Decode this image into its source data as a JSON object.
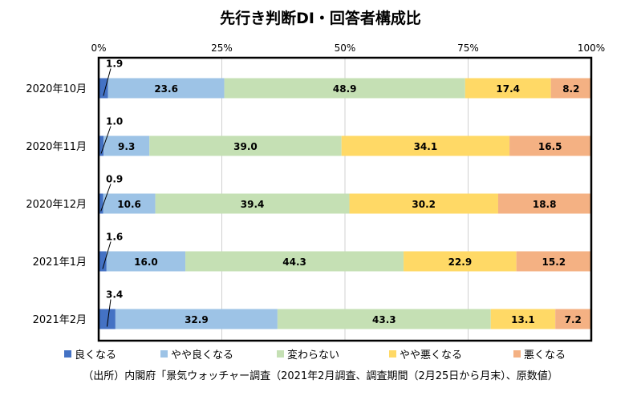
{
  "chart_data": {
    "type": "bar",
    "orientation": "horizontal",
    "stacked": true,
    "title": "先行き判断DI・回答者構成比",
    "categories": [
      "2020年10月",
      "2020年11月",
      "2020年12月",
      "2021年1月",
      "2021年2月"
    ],
    "xlim": [
      0,
      100
    ],
    "x_ticks": [
      "0%",
      "25%",
      "50%",
      "75%",
      "100%"
    ],
    "grid": true,
    "legend_position": "bottom",
    "series": [
      {
        "name": "良くなる",
        "color": "#4472c4",
        "values": [
          1.9,
          1.0,
          0.9,
          1.6,
          3.4
        ]
      },
      {
        "name": "やや良くなる",
        "color": "#9dc3e6",
        "values": [
          23.6,
          9.3,
          10.6,
          16.0,
          32.9
        ]
      },
      {
        "name": "変わらない",
        "color": "#c5e0b4",
        "values": [
          48.9,
          39.0,
          39.4,
          44.3,
          43.3
        ]
      },
      {
        "name": "やや悪くなる",
        "color": "#ffd966",
        "values": [
          17.4,
          34.1,
          30.2,
          22.9,
          13.1
        ]
      },
      {
        "name": "悪くなる",
        "color": "#f4b183",
        "values": [
          8.2,
          16.5,
          18.8,
          15.2,
          7.2
        ]
      }
    ],
    "source": "（出所）内閣府「景気ウォッチャー調査（2021年2月調査、調査期間（2月25日から月末）、原数値）"
  }
}
